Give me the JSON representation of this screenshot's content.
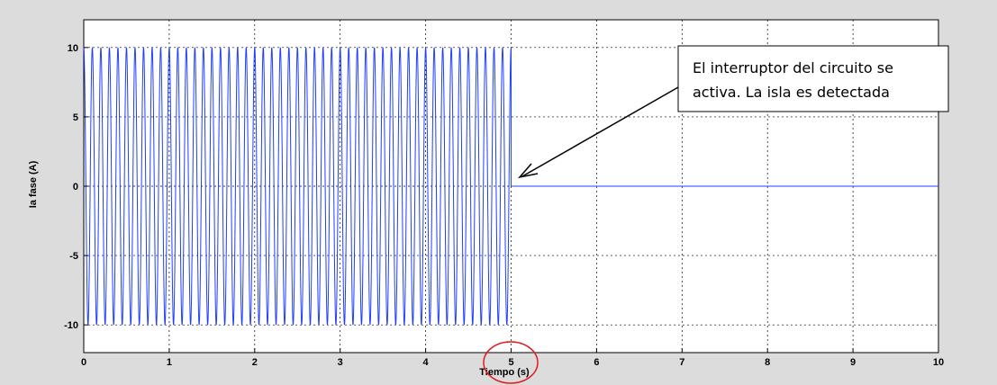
{
  "chart_data": {
    "type": "line",
    "xlabel": "Tiempo (s)",
    "ylabel": "Ia fase (A)",
    "xlim": [
      0,
      10
    ],
    "ylim": [
      -12,
      12
    ],
    "x_ticks": [
      "0",
      "1",
      "2",
      "3",
      "4",
      "5",
      "6",
      "7",
      "8",
      "9",
      "10"
    ],
    "y_ticks": [
      "10",
      "5",
      "0",
      "-5",
      "-10"
    ],
    "grid": true,
    "series": [
      {
        "color": "#1f3fff",
        "segments": [
          {
            "description": "sinusoid",
            "x_start": 0,
            "x_end": 5,
            "amplitude": 10,
            "frequency_hz": 10
          },
          {
            "description": "constant",
            "x_start": 5,
            "x_end": 10,
            "value": 0
          }
        ]
      }
    ],
    "annotation": {
      "lines": [
        "El interruptor del circuito se",
        "activa. La isla es detectada"
      ],
      "arrow_target": {
        "x": 5.05,
        "y": 0.5
      }
    },
    "highlight_circle": {
      "x": 5
    }
  }
}
